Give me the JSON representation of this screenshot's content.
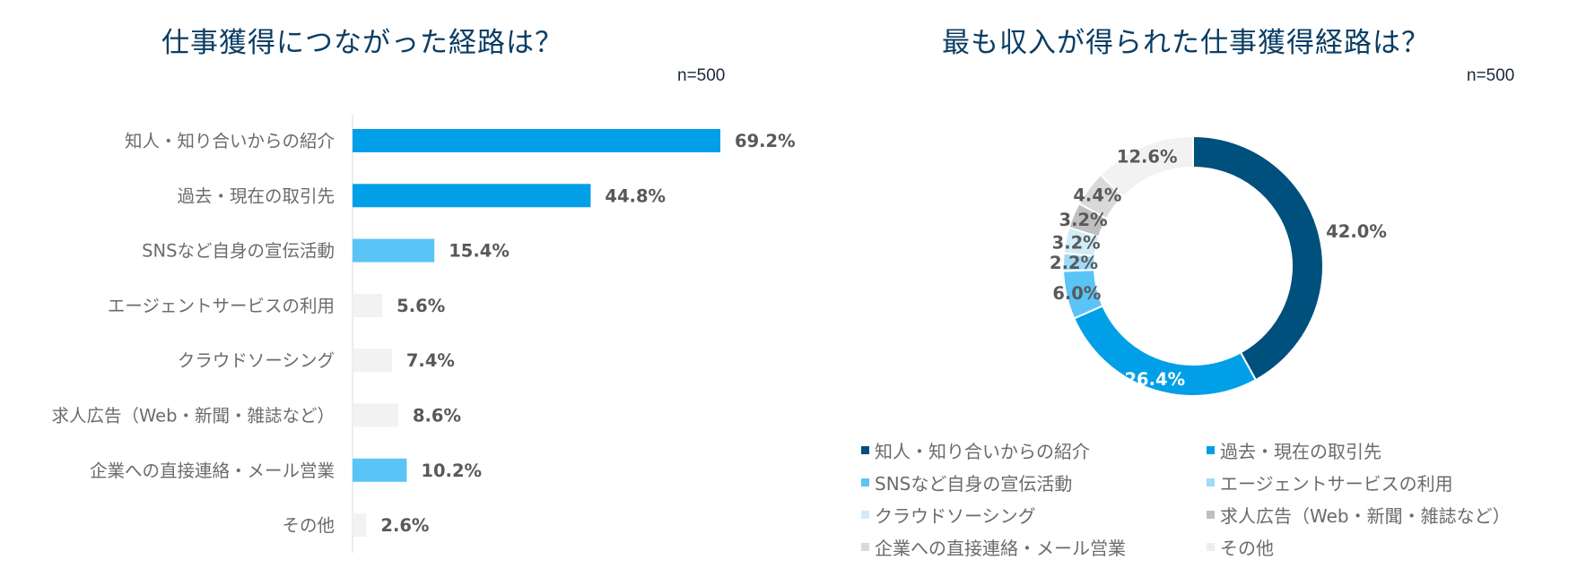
{
  "chart_data": [
    {
      "type": "bar",
      "orientation": "horizontal",
      "title": "仕事獲得につながった経路は？",
      "note": "n=500",
      "categories": [
        "知人・知り合いからの紹介",
        "過去・現在の取引先",
        "SNSなど自身の宣伝活動",
        "エージェントサービスの利用",
        "クラウドソーシング",
        "求人広告（Web・新聞・雑誌など）",
        "企業への直接連絡・メール営業",
        "その他"
      ],
      "values": [
        69.2,
        44.8,
        15.4,
        5.6,
        7.4,
        8.6,
        10.2,
        2.6
      ],
      "value_labels": [
        "69.2%",
        "44.8%",
        "15.4%",
        "5.6%",
        "7.4%",
        "8.6%",
        "10.2%",
        "2.6%"
      ],
      "colors": [
        "#009fe8",
        "#009fe8",
        "#5bc4f7",
        "#f2f2f2",
        "#f2f2f2",
        "#f2f2f2",
        "#5bc4f7",
        "#f2f2f2"
      ],
      "xlim": [
        0,
        100
      ],
      "grid": false
    },
    {
      "type": "pie",
      "variant": "donut",
      "title": "最も収入が得られた仕事獲得経路は？",
      "note": "n=500",
      "categories": [
        "知人・知り合いからの紹介",
        "過去・現在の取引先",
        "SNSなど自身の宣伝活動",
        "エージェントサービスの利用",
        "クラウドソーシング",
        "求人広告（Web・新聞・雑誌など）",
        "企業への直接連絡・メール営業",
        "その他"
      ],
      "values": [
        42.0,
        26.4,
        6.0,
        2.2,
        3.2,
        3.2,
        4.4,
        12.6
      ],
      "value_labels": [
        "42.0%",
        "26.4%",
        "6.0%",
        "2.2%",
        "3.2%",
        "3.2%",
        "4.4%",
        "12.6%"
      ],
      "colors": [
        "#00507e",
        "#009fe8",
        "#5bc4f7",
        "#9fdaf7",
        "#d2ecfa",
        "#bfbfbf",
        "#d9d9d9",
        "#f2f2f2"
      ],
      "label_colors": [
        "#595959",
        "#ffffff",
        "#595959",
        "#595959",
        "#595959",
        "#595959",
        "#595959",
        "#595959"
      ],
      "legend_position": "bottom"
    }
  ]
}
